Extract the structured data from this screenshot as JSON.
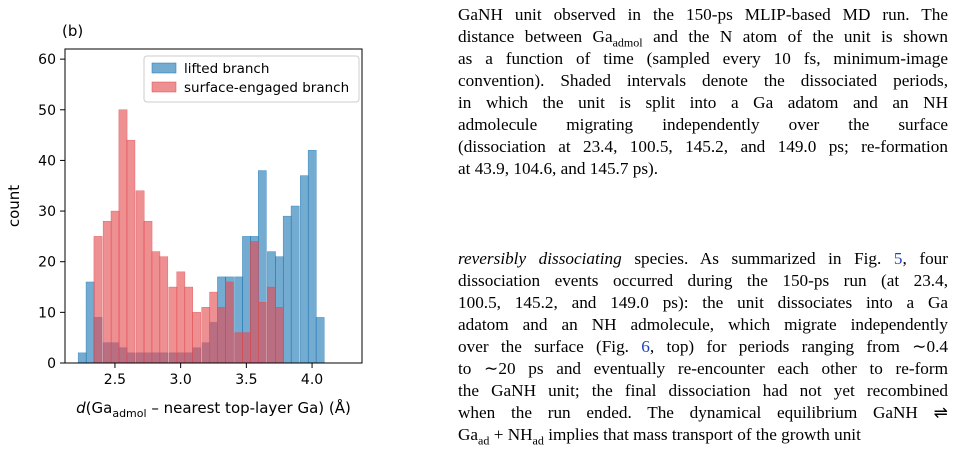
{
  "chart_data": {
    "type": "bar",
    "panel_label": "(b)",
    "xlabel": "d(Ga_admol – nearest top-layer Ga) (Å)",
    "ylabel": "count",
    "xlim": [
      2.12,
      4.38
    ],
    "ylim": [
      0,
      62
    ],
    "xticks": [
      2.5,
      3.0,
      3.5,
      4.0
    ],
    "yticks": [
      0,
      10,
      20,
      30,
      40,
      50,
      60
    ],
    "bin_width": 0.0625,
    "legend_position": "top-right",
    "grid": false,
    "series": [
      {
        "name": "lifted branch",
        "color": "#1f77b4",
        "bins": [
          {
            "x0": 2.22,
            "v": 2
          },
          {
            "x0": 2.28,
            "v": 16
          },
          {
            "x0": 2.34,
            "v": 9
          },
          {
            "x0": 2.41,
            "v": 4
          },
          {
            "x0": 2.47,
            "v": 4
          },
          {
            "x0": 2.53,
            "v": 3
          },
          {
            "x0": 2.59,
            "v": 2
          },
          {
            "x0": 2.66,
            "v": 2
          },
          {
            "x0": 2.72,
            "v": 2
          },
          {
            "x0": 2.78,
            "v": 2
          },
          {
            "x0": 2.84,
            "v": 2
          },
          {
            "x0": 2.91,
            "v": 2
          },
          {
            "x0": 2.97,
            "v": 2
          },
          {
            "x0": 3.03,
            "v": 2
          },
          {
            "x0": 3.09,
            "v": 3
          },
          {
            "x0": 3.16,
            "v": 4
          },
          {
            "x0": 3.22,
            "v": 8
          },
          {
            "x0": 3.28,
            "v": 17
          },
          {
            "x0": 3.34,
            "v": 17
          },
          {
            "x0": 3.41,
            "v": 17
          },
          {
            "x0": 3.47,
            "v": 25
          },
          {
            "x0": 3.53,
            "v": 25
          },
          {
            "x0": 3.59,
            "v": 38
          },
          {
            "x0": 3.66,
            "v": 22
          },
          {
            "x0": 3.72,
            "v": 21
          },
          {
            "x0": 3.78,
            "v": 29
          },
          {
            "x0": 3.84,
            "v": 31
          },
          {
            "x0": 3.91,
            "v": 37
          },
          {
            "x0": 3.97,
            "v": 42
          },
          {
            "x0": 4.03,
            "v": 9
          }
        ]
      },
      {
        "name": "surface-engaged branch",
        "color": "#e34a4f",
        "bins": [
          {
            "x0": 2.34,
            "v": 25
          },
          {
            "x0": 2.41,
            "v": 28
          },
          {
            "x0": 2.47,
            "v": 30
          },
          {
            "x0": 2.53,
            "v": 50
          },
          {
            "x0": 2.59,
            "v": 44
          },
          {
            "x0": 2.66,
            "v": 34
          },
          {
            "x0": 2.72,
            "v": 28
          },
          {
            "x0": 2.78,
            "v": 22
          },
          {
            "x0": 2.84,
            "v": 21
          },
          {
            "x0": 2.91,
            "v": 15
          },
          {
            "x0": 2.97,
            "v": 18
          },
          {
            "x0": 3.03,
            "v": 15
          },
          {
            "x0": 3.09,
            "v": 10
          },
          {
            "x0": 3.16,
            "v": 11
          },
          {
            "x0": 3.22,
            "v": 14
          },
          {
            "x0": 3.28,
            "v": 11
          },
          {
            "x0": 3.34,
            "v": 16
          },
          {
            "x0": 3.41,
            "v": 6
          },
          {
            "x0": 3.47,
            "v": 6
          },
          {
            "x0": 3.53,
            "v": 24
          },
          {
            "x0": 3.59,
            "v": 12
          },
          {
            "x0": 3.66,
            "v": 15
          },
          {
            "x0": 3.72,
            "v": 11
          }
        ]
      }
    ]
  },
  "caption": {
    "lines": [
      "GaNH unit observed in the 150-ps MLIP-based MD run. The",
      "distance between Ga|admol| and the N atom of the unit is shown",
      "as a function of time (sampled every 10 fs, minimum-image",
      "convention). Shaded intervals denote the dissociated periods,",
      "in which the unit is split into a Ga adatom and an NH",
      "admolecule migrating independently over the surface",
      "(dissociation at 23.4, 100.5, 145.2, and 149.0 ps; re-formation",
      "at 43.9, 104.6, and 145.7 ps)."
    ]
  },
  "body": {
    "lines": [
      "/reversibly dissociating/ species. As summarized in Fig. [5], four",
      "dissociation events occurred during the 150-ps run (at 23.4,",
      "100.5, 145.2, and 149.0 ps): the unit dissociates into a Ga",
      "adatom and an NH admolecule, which migrate independently",
      "over the surface (Fig. [6], top) for periods ranging from ∼0.4",
      "to ∼20 ps and eventually re-encounter each other to re-form",
      "the GaNH unit; the final dissociation had not yet recombined",
      "when the run ended. The dynamical equilibrium GaNH ⇌",
      "Ga|ad| + NH|ad| implies that mass transport of the growth unit"
    ]
  }
}
